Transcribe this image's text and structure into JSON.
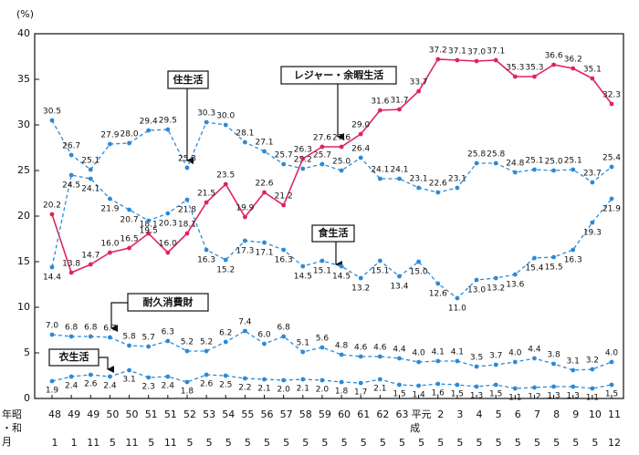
{
  "chart_data": {
    "type": "line",
    "y_unit": "(%)",
    "ylim": [
      0,
      40
    ],
    "yticks": [
      0,
      5,
      10,
      15,
      20,
      25,
      30,
      35,
      40
    ],
    "row_headers": [
      "年昭",
      "・和",
      "月"
    ],
    "categories": [
      "48",
      "49",
      "49",
      "50",
      "50",
      "51",
      "51",
      "52",
      "53",
      "54",
      "55",
      "56",
      "57",
      "58",
      "59",
      "60",
      "61",
      "62",
      "63",
      "平元",
      "2",
      "3",
      "4",
      "5",
      "6",
      "7",
      "8",
      "9",
      "10",
      "11"
    ],
    "categories_era": [
      null,
      null,
      null,
      null,
      null,
      null,
      null,
      null,
      null,
      null,
      null,
      null,
      null,
      null,
      null,
      null,
      null,
      null,
      null,
      "成",
      null,
      null,
      null,
      null,
      null,
      null,
      null,
      null,
      null,
      null
    ],
    "months": [
      "1",
      "1",
      "11",
      "5",
      "11",
      "5",
      "11",
      "5",
      "5",
      "5",
      "5",
      "5",
      "5",
      "5",
      "5",
      "5",
      "5",
      "5",
      "5",
      "5",
      "5",
      "5",
      "5",
      "5",
      "5",
      "5",
      "5",
      "5",
      "5",
      "12"
    ],
    "series": [
      {
        "name": "住生活",
        "color": "#2b8ad8",
        "dash": true,
        "values": [
          30.5,
          26.7,
          25.1,
          27.9,
          28.0,
          29.4,
          29.5,
          25.3,
          30.3,
          30.0,
          28.1,
          27.1,
          25.7,
          25.2,
          25.7,
          25.0,
          26.4,
          24.1,
          24.1,
          23.1,
          22.6,
          23.1,
          25.8,
          25.8,
          24.8,
          25.1,
          25.0,
          25.1,
          23.7,
          25.4
        ],
        "value_labels": [
          "30.5",
          "26.7",
          "25.1",
          "27.9",
          "28.0",
          "29.4",
          "29.5",
          "25.3",
          "30.3",
          "30.0",
          "28.1",
          "27.1",
          "25.7",
          "25.2",
          "25.7",
          "25.0",
          "26.4",
          "24.1",
          "24.1",
          "23.1",
          "22.6",
          "23.1",
          "25.8",
          "25.8",
          "24.8",
          "25.1",
          "25.0",
          "25.1",
          "23.7",
          "25.4"
        ]
      },
      {
        "name": "レジャー・余暇生活",
        "color": "#e0245e",
        "dash": false,
        "values": [
          20.2,
          13.8,
          14.7,
          16.0,
          16.5,
          18.1,
          16.0,
          18.1,
          21.5,
          23.5,
          19.9,
          22.6,
          21.2,
          26.3,
          27.6,
          27.6,
          29.0,
          31.6,
          31.7,
          33.7,
          37.2,
          37.1,
          37.0,
          37.1,
          35.3,
          35.3,
          36.6,
          36.2,
          35.1,
          32.3
        ],
        "value_labels": [
          "20.2",
          "13.8",
          "14.7",
          "16.0",
          "16.5",
          "18.1",
          "16.0",
          "18.1",
          "21.5",
          "23.5",
          "19.9",
          "22.6",
          "21.2",
          "26.3",
          "27.6",
          "27.6",
          "29.0",
          "31.6",
          "31.7",
          "33.7",
          "37.2",
          "37.1",
          "37.0",
          "37.1",
          "35.3",
          "35.3",
          "36.6",
          "36.2",
          "35.1",
          "32.3"
        ]
      },
      {
        "name": "食生活",
        "color": "#2b8ad8",
        "dash": true,
        "values": [
          14.4,
          24.5,
          24.1,
          21.9,
          20.7,
          19.5,
          20.3,
          21.8,
          16.3,
          15.2,
          17.3,
          17.1,
          16.3,
          14.5,
          15.1,
          14.5,
          13.2,
          15.1,
          13.4,
          15.0,
          12.6,
          11.0,
          13.0,
          13.2,
          13.6,
          15.4,
          15.5,
          16.3,
          19.3,
          21.9
        ],
        "value_labels": [
          "14.4",
          "24.5",
          "24.1",
          "21.9",
          "20.7",
          "19.5",
          "20.3",
          "21.8",
          "16.3",
          "15.2",
          "17.3",
          "17.1",
          "16.3",
          "14.5",
          "15.1",
          "14.5",
          "13.2",
          "15.1",
          "13.4",
          "15.0",
          "12.6",
          "11.0",
          "13.0",
          "13.2",
          "13.6",
          "15.4",
          "15.5",
          "16.3",
          "19.3",
          "21.9"
        ]
      },
      {
        "name": "耐久消費財",
        "color": "#2b8ad8",
        "dash": true,
        "values": [
          7.0,
          6.8,
          6.8,
          6.7,
          5.8,
          5.7,
          6.3,
          5.2,
          5.2,
          6.2,
          7.4,
          6.0,
          6.8,
          5.1,
          5.6,
          4.8,
          4.6,
          4.6,
          4.4,
          4.0,
          4.1,
          4.1,
          3.5,
          3.7,
          4.0,
          4.4,
          3.8,
          3.1,
          3.2,
          4.0
        ],
        "value_labels": [
          "7.0",
          "6.8",
          "6.8",
          "6.7",
          "5.8",
          "5.7",
          "6.3",
          "5.2",
          "5.2",
          "6.2",
          "7.4",
          "6.0",
          "6.8",
          "5.1",
          "5.6",
          "4.8",
          "4.6",
          "4.6",
          "4.4",
          "4.0",
          "4.1",
          "4.1",
          "3.5",
          "3.7",
          "4.0",
          "4.4",
          "3.8",
          "3.1",
          "3.2",
          "4.0"
        ]
      },
      {
        "name": "衣生活",
        "color": "#2b8ad8",
        "dash": true,
        "values": [
          1.9,
          2.4,
          2.6,
          2.4,
          3.1,
          2.3,
          2.4,
          1.8,
          2.6,
          2.5,
          2.2,
          2.1,
          2.0,
          2.1,
          2.0,
          1.8,
          1.7,
          2.1,
          1.5,
          1.4,
          1.6,
          1.5,
          1.3,
          1.5,
          1.1,
          1.2,
          1.3,
          1.3,
          1.1,
          1.5
        ],
        "value_labels": [
          "1.9",
          "2.4",
          "2.6",
          "2.4",
          "3.1",
          "2.3",
          "2.4",
          "1.8",
          "2.6",
          "2.5",
          "2.2",
          "2.1",
          "2.0",
          "2.1",
          "2.0",
          "1.8",
          "1.7",
          "2.1",
          "1.5",
          "1.4",
          "1.6",
          "1.5",
          "1.3",
          "1.5",
          "1.1",
          "1.2",
          "1.3",
          "1.3",
          "1.1",
          "1.5"
        ]
      }
    ]
  }
}
